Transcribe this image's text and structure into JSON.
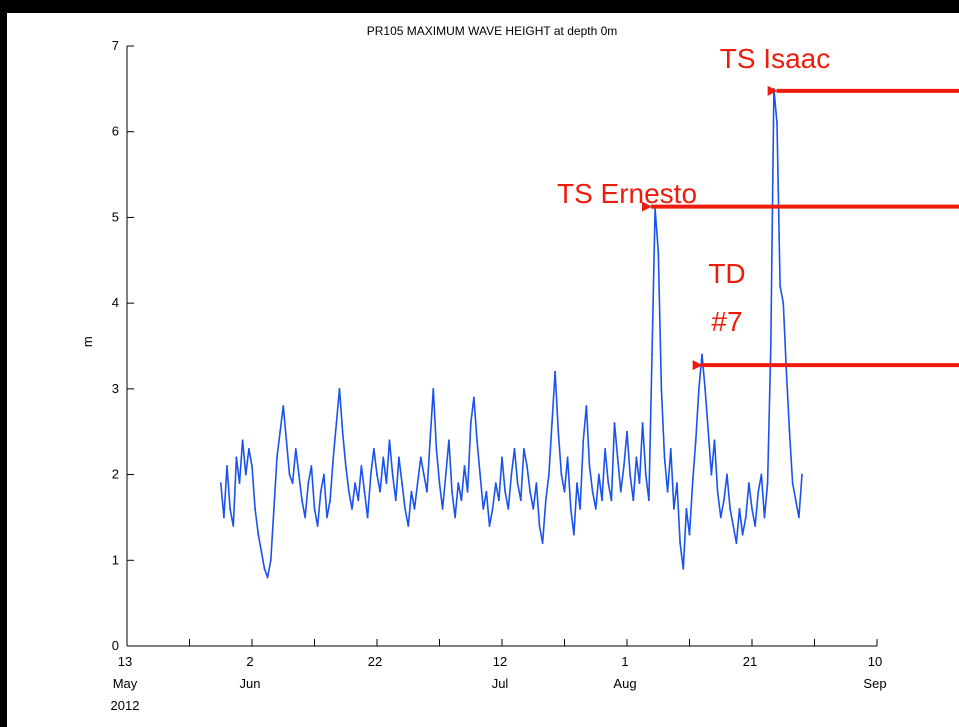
{
  "chart_data": {
    "type": "line",
    "title": "PR105 MAXIMUM WAVE HEIGHT at depth 0m",
    "xlabel": "",
    "ylabel": "m",
    "ylim": [
      0,
      7
    ],
    "xlim_day_of_year": [
      134,
      254
    ],
    "yticks": [
      "0",
      "1",
      "2",
      "3",
      "4",
      "5",
      "6",
      "7"
    ],
    "xticks": [
      {
        "day": 134,
        "lines": [
          "13",
          "May",
          "2012"
        ]
      },
      {
        "day": 154,
        "lines": [
          "2",
          "Jun"
        ]
      },
      {
        "day": 174,
        "lines": [
          "22",
          ""
        ]
      },
      {
        "day": 194,
        "lines": [
          "12",
          "Jul"
        ]
      },
      {
        "day": 214,
        "lines": [
          "1",
          "Aug"
        ]
      },
      {
        "day": 234,
        "lines": [
          "21",
          ""
        ]
      },
      {
        "day": 254,
        "lines": [
          "10",
          "Sep"
        ]
      }
    ],
    "grid": false,
    "line_color": "#1a52f0",
    "series": [
      {
        "name": "",
        "x_day_of_year": [
          149,
          149.5,
          150,
          150.5,
          151,
          151.5,
          152,
          152.5,
          153,
          153.5,
          154,
          154.5,
          155,
          155.5,
          156,
          156.5,
          157,
          157.5,
          158,
          158.5,
          159,
          159.5,
          160,
          160.5,
          161,
          161.5,
          162,
          162.5,
          163,
          163.5,
          164,
          164.5,
          165,
          165.5,
          166,
          166.5,
          167,
          167.5,
          168,
          168.5,
          169,
          169.5,
          170,
          170.5,
          171,
          171.5,
          172,
          172.5,
          173,
          173.5,
          174,
          174.5,
          175,
          175.5,
          176,
          176.5,
          177,
          177.5,
          178,
          178.5,
          179,
          179.5,
          180,
          180.5,
          181,
          181.5,
          182,
          182.5,
          183,
          183.5,
          184,
          184.5,
          185,
          185.5,
          186,
          186.5,
          187,
          187.5,
          188,
          188.5,
          189,
          189.5,
          190,
          190.5,
          191,
          191.5,
          192,
          192.5,
          193,
          193.5,
          194,
          194.5,
          195,
          195.5,
          196,
          196.5,
          197,
          197.5,
          198,
          198.5,
          199,
          199.5,
          200,
          200.5,
          201,
          201.5,
          202,
          202.5,
          203,
          203.5,
          204,
          204.5,
          205,
          205.5,
          206,
          206.5,
          207,
          207.5,
          208,
          208.5,
          209,
          209.5,
          210,
          210.5,
          211,
          211.5,
          212,
          212.5,
          213,
          213.5,
          214,
          214.5,
          215,
          215.5,
          216,
          216.5,
          217,
          217.5,
          218,
          218.5,
          219,
          219.5,
          220,
          220.5,
          221,
          221.5,
          222,
          222.5,
          223,
          223.5,
          224,
          224.5,
          225,
          225.5,
          226,
          226.5,
          227,
          227.5,
          228,
          228.5,
          229,
          229.5,
          230,
          230.5,
          231,
          231.5,
          232,
          232.5,
          233,
          233.5,
          234,
          234.5,
          235,
          235.5,
          236,
          236.5,
          237,
          237.5,
          238,
          238.5,
          239,
          239.5,
          240,
          240.5,
          241,
          241.5,
          242
        ],
        "values": [
          1.9,
          1.5,
          2.1,
          1.6,
          1.4,
          2.2,
          1.9,
          2.4,
          2.0,
          2.3,
          2.1,
          1.6,
          1.3,
          1.1,
          0.9,
          0.8,
          1.0,
          1.6,
          2.2,
          2.5,
          2.8,
          2.4,
          2.0,
          1.9,
          2.3,
          2.0,
          1.7,
          1.5,
          1.9,
          2.1,
          1.6,
          1.4,
          1.8,
          2.0,
          1.5,
          1.7,
          2.2,
          2.6,
          3.0,
          2.5,
          2.1,
          1.8,
          1.6,
          1.9,
          1.7,
          2.1,
          1.8,
          1.5,
          2.0,
          2.3,
          2.0,
          1.8,
          2.2,
          1.9,
          2.4,
          2.0,
          1.7,
          2.2,
          1.9,
          1.6,
          1.4,
          1.8,
          1.6,
          1.9,
          2.2,
          2.0,
          1.8,
          2.4,
          3.0,
          2.3,
          1.9,
          1.6,
          2.0,
          2.4,
          1.8,
          1.5,
          1.9,
          1.7,
          2.1,
          1.8,
          2.6,
          2.9,
          2.4,
          2.0,
          1.6,
          1.8,
          1.4,
          1.6,
          1.9,
          1.7,
          2.2,
          1.8,
          1.6,
          2.0,
          2.3,
          1.9,
          1.7,
          2.3,
          2.1,
          1.8,
          1.6,
          1.9,
          1.4,
          1.2,
          1.7,
          2.0,
          2.6,
          3.2,
          2.5,
          2.0,
          1.8,
          2.2,
          1.6,
          1.3,
          1.9,
          1.6,
          2.4,
          2.8,
          2.1,
          1.8,
          1.6,
          2.0,
          1.7,
          2.3,
          1.9,
          1.7,
          2.6,
          2.2,
          1.8,
          2.1,
          2.5,
          2.0,
          1.7,
          2.2,
          1.9,
          2.6,
          2.0,
          1.7,
          3.4,
          5.1,
          4.6,
          3.0,
          2.2,
          1.8,
          2.3,
          1.6,
          1.9,
          1.2,
          0.9,
          1.6,
          1.3,
          1.9,
          2.4,
          3.0,
          3.4,
          3.0,
          2.5,
          2.0,
          2.4,
          1.8,
          1.5,
          1.7,
          2.0,
          1.6,
          1.4,
          1.2,
          1.6,
          1.3,
          1.5,
          1.9,
          1.6,
          1.4,
          1.8,
          2.0,
          1.5,
          1.9,
          3.5,
          6.5,
          6.1,
          4.2,
          4.0,
          3.2,
          2.5,
          1.9,
          1.7,
          1.5,
          2.0
        ]
      }
    ],
    "annotations": [
      {
        "text": "TS Isaac",
        "x_day_of_year": 237.3,
        "y": 6.5
      },
      {
        "text": "TS Ernesto",
        "x_day_of_year": 217.2,
        "y": 5.15
      },
      {
        "text_lines": [
          "TD",
          "#7"
        ],
        "x_day_of_year": 225.3,
        "y": 3.3
      }
    ],
    "annotation_color": "#ee1c0c"
  }
}
